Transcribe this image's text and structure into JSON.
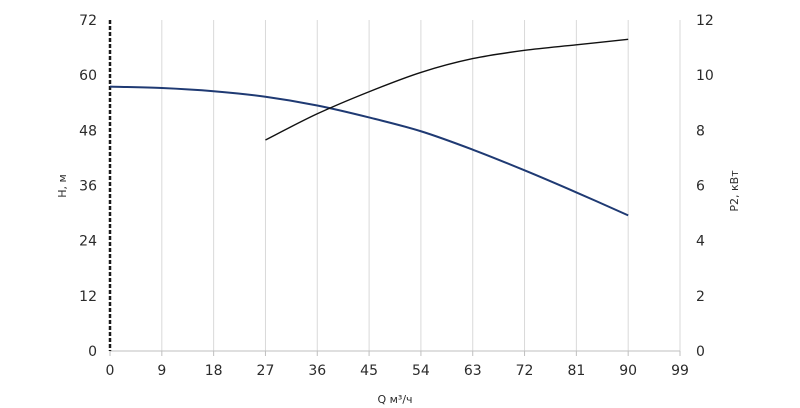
{
  "chart_data": {
    "type": "line",
    "xlabel": "Q м³/ч",
    "ylabel_left": "H, м",
    "ylabel_right": "P2, кВт",
    "x_ticks": [
      0,
      9,
      18,
      27,
      36,
      45,
      54,
      63,
      72,
      81,
      90,
      99
    ],
    "y_left_ticks": [
      0,
      12,
      24,
      36,
      48,
      60,
      72
    ],
    "y_right_ticks": [
      0,
      2,
      4,
      6,
      8,
      10,
      12
    ],
    "xlim": [
      0,
      99
    ],
    "ylim_left": [
      0,
      72
    ],
    "ylim_right": [
      0,
      12
    ],
    "grid": "vertical",
    "series": [
      {
        "axis": "left",
        "color": "#1f3a73",
        "points": [
          [
            0,
            57.5
          ],
          [
            9,
            57.2
          ],
          [
            18,
            56.5
          ],
          [
            27,
            55.3
          ],
          [
            36,
            53.4
          ],
          [
            45,
            50.8
          ],
          [
            54,
            47.8
          ],
          [
            63,
            43.8
          ],
          [
            72,
            39.3
          ],
          [
            81,
            34.5
          ],
          [
            90,
            29.5
          ]
        ]
      },
      {
        "axis": "right",
        "color": "#111111",
        "points": [
          [
            27,
            7.65
          ],
          [
            36,
            8.6
          ],
          [
            45,
            9.4
          ],
          [
            54,
            10.1
          ],
          [
            63,
            10.6
          ],
          [
            72,
            10.9
          ],
          [
            81,
            11.1
          ],
          [
            90,
            11.3
          ]
        ]
      }
    ]
  }
}
